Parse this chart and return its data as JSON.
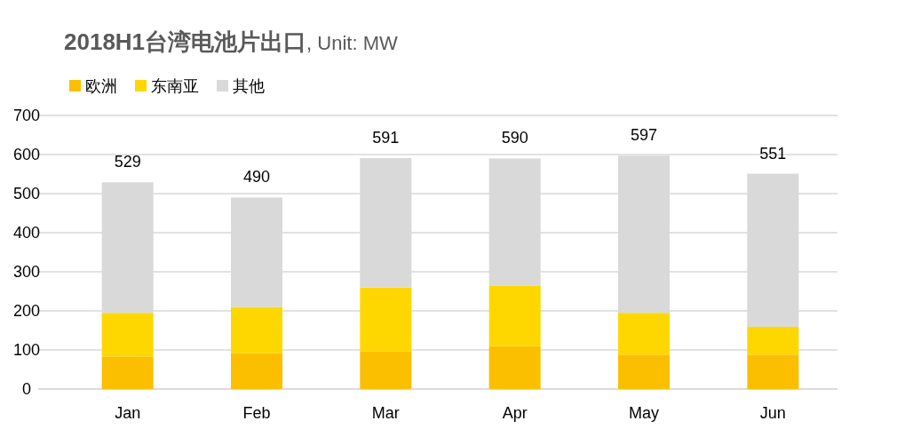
{
  "chart_data": {
    "type": "bar",
    "title": "**2018H1台湾电池片出口**, Unit: MW",
    "categories": [
      "Jan",
      "Feb",
      "Mar",
      "Apr",
      "May",
      "Jun"
    ],
    "stacked": true,
    "series": [
      {
        "name": "欧洲",
        "color": "#fbbf00",
        "values": [
          83,
          92,
          97,
          110,
          88,
          88
        ]
      },
      {
        "name": "东南亚",
        "color": "#ffd700",
        "values": [
          112,
          118,
          163,
          155,
          107,
          71
        ]
      },
      {
        "name": "其他",
        "color": "#d9d9d9",
        "values": [
          334,
          280,
          331,
          325,
          402,
          392
        ]
      }
    ],
    "totals": [
      "529",
      "490",
      "591",
      "590",
      "597",
      "551"
    ],
    "ylim": [
      0,
      700
    ],
    "yticks": [
      0,
      100,
      200,
      300,
      400,
      500,
      600,
      700
    ],
    "grid": "y",
    "legend": "top left"
  }
}
